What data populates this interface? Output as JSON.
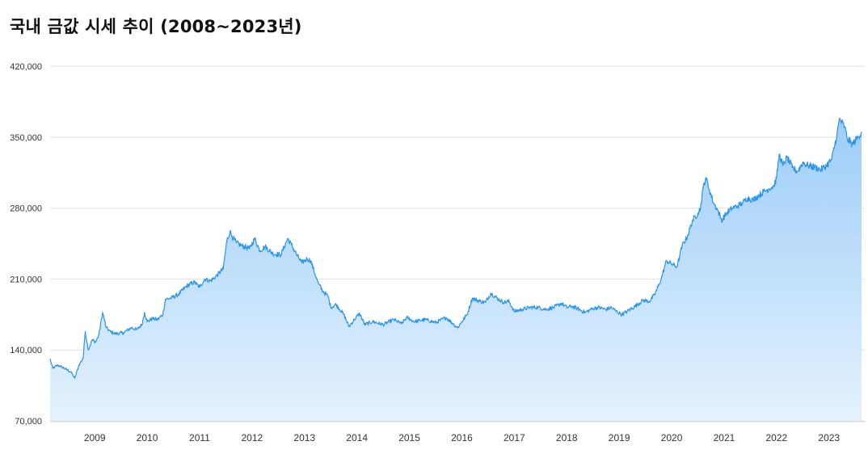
{
  "chart_data": {
    "type": "area",
    "title": "국내 금값 시세 추이 (2008~2023년)",
    "xlabel": "",
    "ylabel": "",
    "ylim": [
      70000,
      420000
    ],
    "yticks": [
      70000,
      140000,
      210000,
      280000,
      350000,
      420000
    ],
    "ytick_labels": [
      "70,000",
      "140,000",
      "210,000",
      "280,000",
      "350,000",
      "420,000"
    ],
    "xlim": [
      2008.15,
      2023.62
    ],
    "xticks": [
      2009,
      2010,
      2011,
      2012,
      2013,
      2014,
      2015,
      2016,
      2017,
      2018,
      2019,
      2020,
      2021,
      2022,
      2023
    ],
    "xtick_labels": [
      "2009",
      "2010",
      "2011",
      "2012",
      "2013",
      "2014",
      "2015",
      "2016",
      "2017",
      "2018",
      "2019",
      "2020",
      "2021",
      "2022",
      "2023"
    ],
    "grid": true,
    "legend": "none",
    "colors": {
      "line": "#2b95e8",
      "fill_top": "#9dcdf8",
      "fill_bottom": "#e4f2fd",
      "grid": "#e2e2e2"
    },
    "series": [
      {
        "x": [
          2008.15,
          2008.2,
          2008.3,
          2008.42,
          2008.55,
          2008.62,
          2008.7,
          2008.78,
          2008.82,
          2008.88,
          2008.95,
          2009.02,
          2009.08,
          2009.15,
          2009.22,
          2009.3,
          2009.4,
          2009.55,
          2009.7,
          2009.8,
          2009.9,
          2009.95,
          2010.0,
          2010.1,
          2010.2,
          2010.3,
          2010.35,
          2010.45,
          2010.6,
          2010.75,
          2010.9,
          2011.0,
          2011.1,
          2011.2,
          2011.3,
          2011.45,
          2011.52,
          2011.58,
          2011.62,
          2011.7,
          2011.8,
          2011.95,
          2012.05,
          2012.15,
          2012.25,
          2012.4,
          2012.55,
          2012.68,
          2012.75,
          2012.85,
          2012.95,
          2013.05,
          2013.12,
          2013.22,
          2013.27,
          2013.35,
          2013.45,
          2013.5,
          2013.6,
          2013.75,
          2013.85,
          2013.95,
          2014.05,
          2014.15,
          2014.3,
          2014.5,
          2014.7,
          2014.85,
          2014.95,
          2015.1,
          2015.3,
          2015.5,
          2015.7,
          2015.85,
          2015.92,
          2016.0,
          2016.1,
          2016.2,
          2016.35,
          2016.45,
          2016.55,
          2016.7,
          2016.8,
          2016.9,
          2017.0,
          2017.15,
          2017.3,
          2017.45,
          2017.6,
          2017.75,
          2017.9,
          2018.0,
          2018.1,
          2018.2,
          2018.35,
          2018.5,
          2018.6,
          2018.75,
          2018.85,
          2018.95,
          2019.05,
          2019.15,
          2019.3,
          2019.45,
          2019.58,
          2019.68,
          2019.8,
          2019.9,
          2020.0,
          2020.1,
          2020.15,
          2020.2,
          2020.3,
          2020.4,
          2020.5,
          2020.55,
          2020.6,
          2020.65,
          2020.72,
          2020.8,
          2020.88,
          2020.95,
          2021.05,
          2021.15,
          2021.25,
          2021.35,
          2021.45,
          2021.55,
          2021.65,
          2021.75,
          2021.85,
          2021.95,
          2022.0,
          2022.05,
          2022.12,
          2022.2,
          2022.3,
          2022.4,
          2022.5,
          2022.6,
          2022.75,
          2022.85,
          2022.95,
          2023.05,
          2023.15,
          2023.2,
          2023.3,
          2023.35,
          2023.45,
          2023.55,
          2023.62
        ],
        "y": [
          131000,
          122000,
          125000,
          122000,
          118000,
          112000,
          125000,
          132000,
          158000,
          140000,
          150000,
          148000,
          155000,
          177000,
          162000,
          158000,
          156000,
          157000,
          162000,
          160000,
          165000,
          177000,
          168000,
          171000,
          170000,
          175000,
          190000,
          191000,
          195000,
          203000,
          207000,
          202000,
          210000,
          208000,
          212000,
          220000,
          248000,
          257000,
          252000,
          246000,
          243000,
          240000,
          250000,
          238000,
          242000,
          235000,
          234000,
          250000,
          244000,
          234000,
          226000,
          230000,
          228000,
          212000,
          205000,
          198000,
          193000,
          182000,
          185000,
          175000,
          163000,
          170000,
          176000,
          165000,
          168000,
          165000,
          170000,
          166000,
          172000,
          168000,
          170000,
          167000,
          172000,
          165000,
          162000,
          168000,
          175000,
          191000,
          188000,
          187000,
          196000,
          190000,
          187000,
          188000,
          178000,
          180000,
          182000,
          182000,
          180000,
          182000,
          186000,
          182000,
          183000,
          181000,
          177000,
          181000,
          182000,
          180000,
          182000,
          178000,
          175000,
          178000,
          183000,
          189000,
          188000,
          195000,
          210000,
          228000,
          225000,
          222000,
          232000,
          243000,
          252000,
          268000,
          275000,
          280000,
          300000,
          310000,
          298000,
          285000,
          278000,
          268000,
          275000,
          280000,
          282000,
          285000,
          290000,
          288000,
          292000,
          296000,
          299000,
          302000,
          310000,
          333000,
          322000,
          330000,
          320000,
          316000,
          325000,
          322000,
          320000,
          318000,
          322000,
          328000,
          352000,
          368000,
          360000,
          348000,
          343000,
          350000,
          355000
        ]
      }
    ]
  }
}
